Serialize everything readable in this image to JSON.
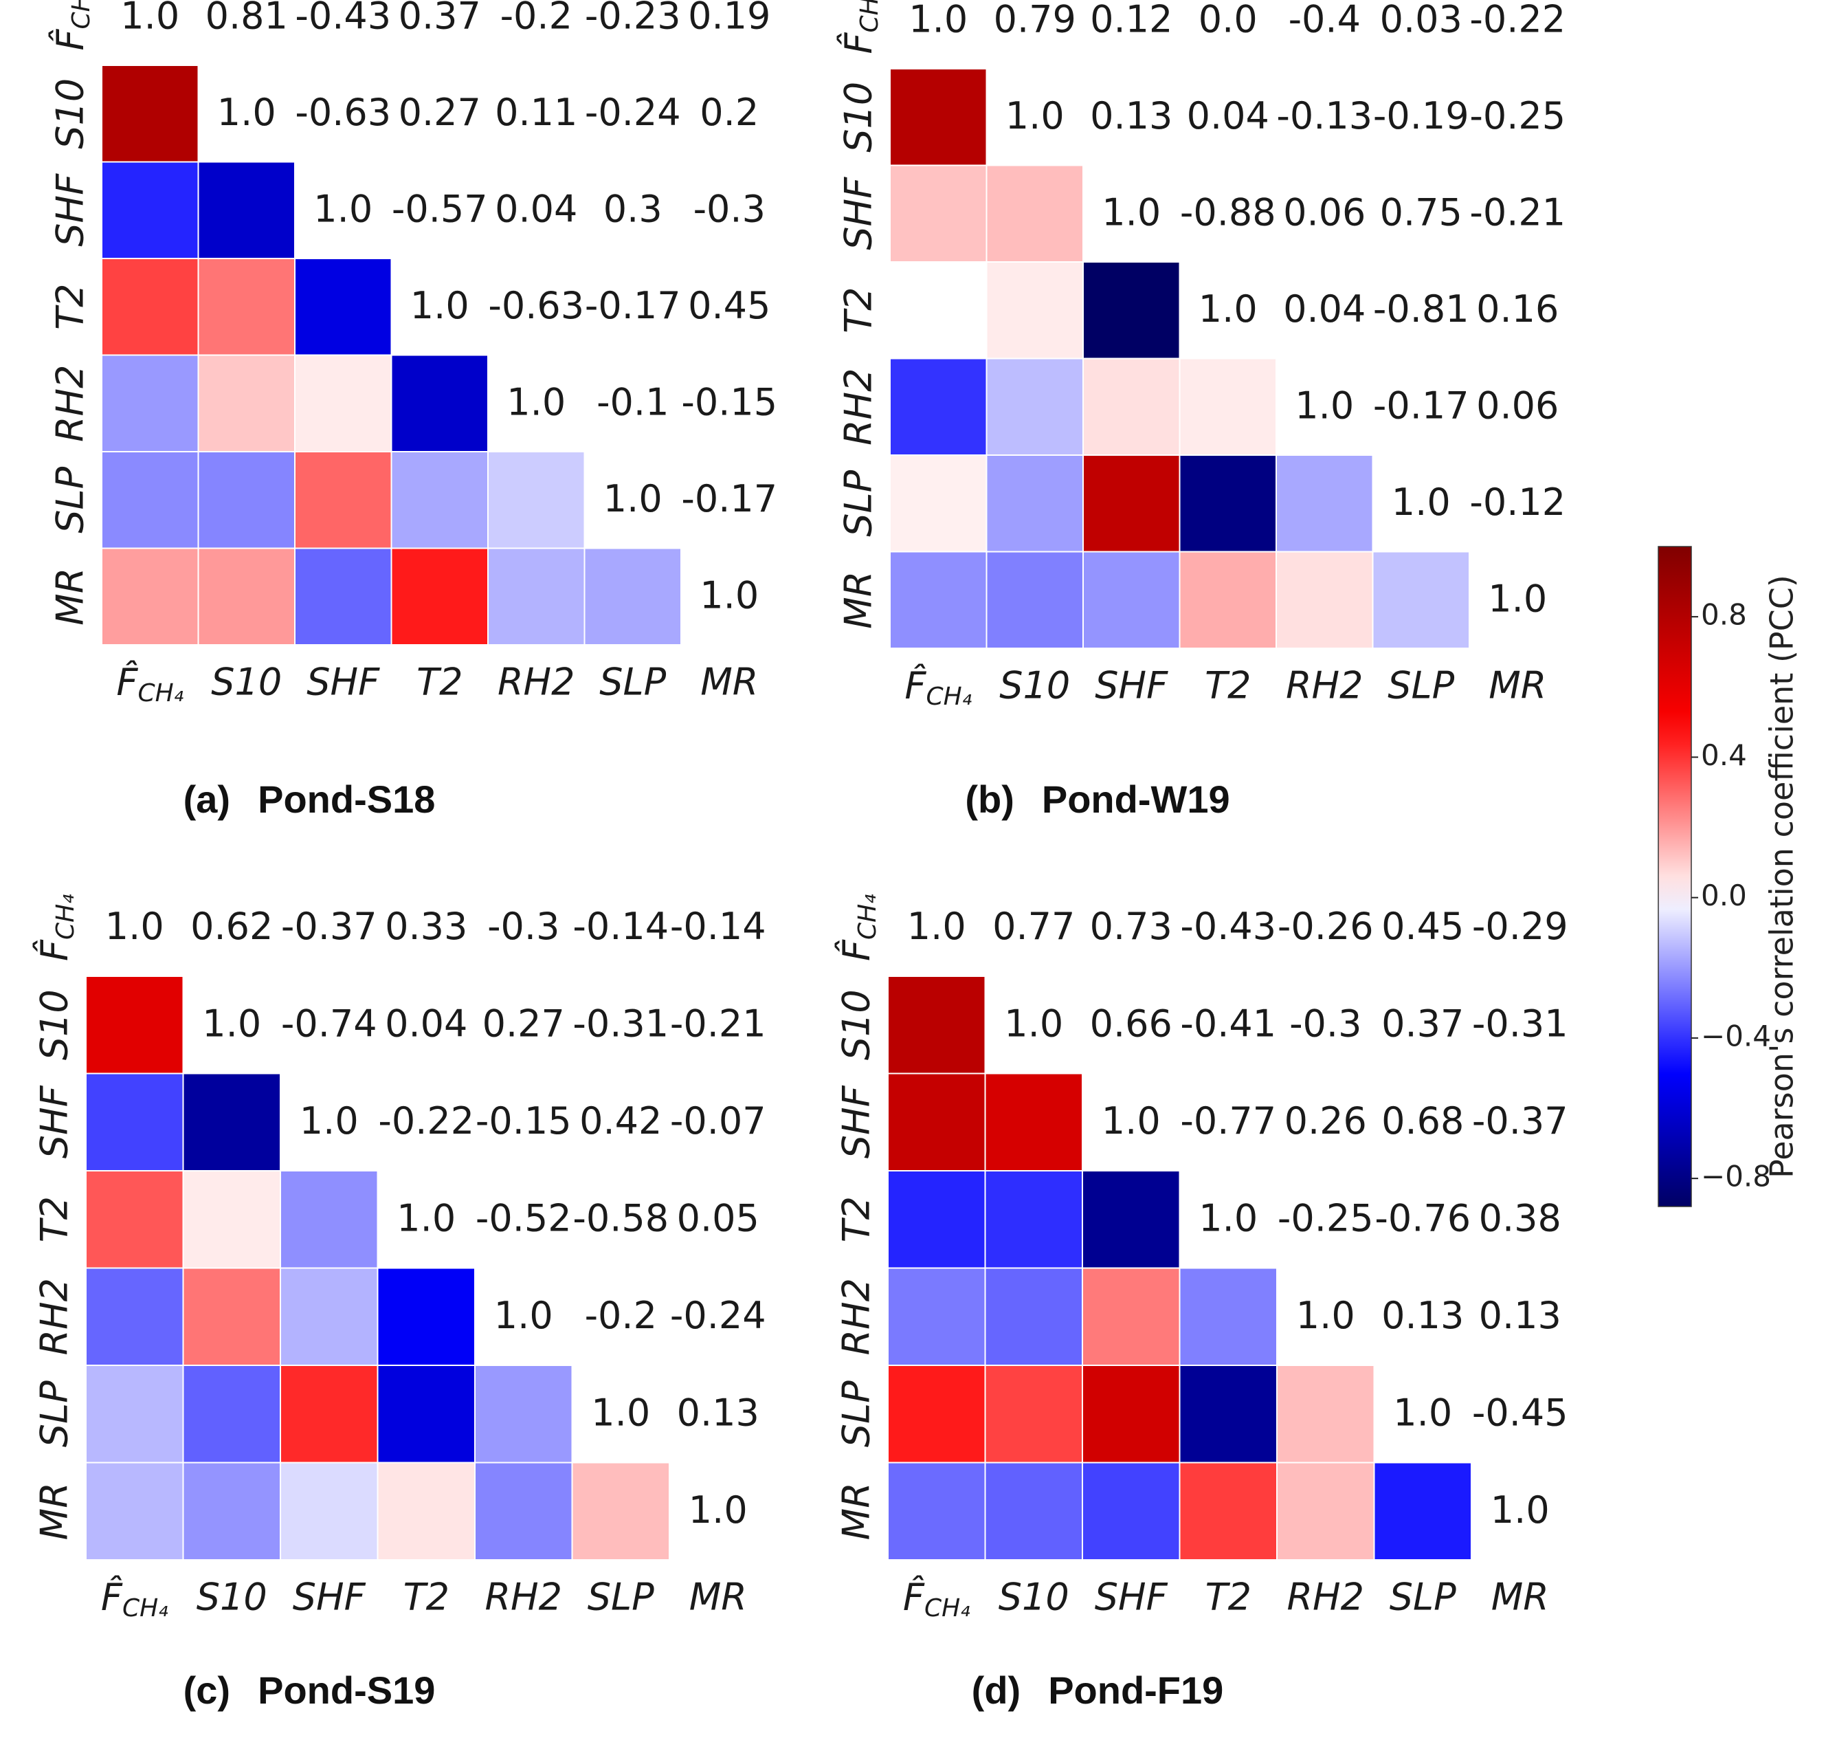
{
  "chart_data": [
    {
      "type": "heatmap",
      "title": "Pond-S18",
      "caption_letter": "(a)",
      "labels": [
        "F_CH4",
        "S10",
        "SHF",
        "T2",
        "RH2",
        "SLP",
        "MR"
      ],
      "label_display": {
        "F_CH4": "F̂CH₄"
      },
      "matrix": [
        [
          1.0,
          0.81,
          -0.43,
          0.37,
          -0.2,
          -0.23,
          0.19
        ],
        [
          0.81,
          1.0,
          -0.63,
          0.27,
          0.11,
          -0.24,
          0.2
        ],
        [
          -0.43,
          -0.63,
          1.0,
          -0.57,
          0.04,
          0.3,
          -0.3
        ],
        [
          0.37,
          0.27,
          -0.57,
          1.0,
          -0.63,
          -0.17,
          0.45
        ],
        [
          -0.2,
          0.11,
          0.04,
          -0.63,
          1.0,
          -0.1,
          -0.15
        ],
        [
          -0.23,
          -0.24,
          0.3,
          -0.17,
          -0.1,
          1.0,
          -0.17
        ],
        [
          0.19,
          0.2,
          -0.3,
          0.45,
          -0.15,
          -0.17,
          1.0
        ]
      ],
      "lower_triangle_colored": true,
      "upper_triangle_as_text": true
    },
    {
      "type": "heatmap",
      "title": "Pond-W19",
      "caption_letter": "(b)",
      "labels": [
        "F_CH4",
        "S10",
        "SHF",
        "T2",
        "RH2",
        "SLP",
        "MR"
      ],
      "label_display": {
        "F_CH4": "F̂CH₄"
      },
      "matrix": [
        [
          1.0,
          0.79,
          0.12,
          0.0,
          -0.4,
          0.03,
          -0.22
        ],
        [
          0.79,
          1.0,
          0.13,
          0.04,
          -0.13,
          -0.19,
          -0.25
        ],
        [
          0.12,
          0.13,
          1.0,
          -0.88,
          0.06,
          0.75,
          -0.21
        ],
        [
          0.0,
          0.04,
          -0.88,
          1.0,
          0.04,
          -0.81,
          0.16
        ],
        [
          -0.4,
          -0.13,
          0.06,
          0.04,
          1.0,
          -0.17,
          0.06
        ],
        [
          0.03,
          -0.19,
          0.75,
          -0.81,
          -0.17,
          1.0,
          -0.12
        ],
        [
          -0.22,
          -0.25,
          -0.21,
          0.16,
          0.06,
          -0.12,
          1.0
        ]
      ],
      "lower_triangle_colored": true,
      "upper_triangle_as_text": true
    },
    {
      "type": "heatmap",
      "title": "Pond-S19",
      "caption_letter": "(c)",
      "labels": [
        "F_CH4",
        "S10",
        "SHF",
        "T2",
        "RH2",
        "SLP",
        "MR"
      ],
      "label_display": {
        "F_CH4": "F̂CH₄"
      },
      "matrix": [
        [
          1.0,
          0.62,
          -0.37,
          0.33,
          -0.3,
          -0.14,
          -0.14
        ],
        [
          0.62,
          1.0,
          -0.74,
          0.04,
          0.27,
          -0.31,
          -0.21
        ],
        [
          -0.37,
          -0.74,
          1.0,
          -0.22,
          -0.15,
          0.42,
          -0.07
        ],
        [
          0.33,
          0.04,
          -0.22,
          1.0,
          -0.52,
          -0.58,
          0.05
        ],
        [
          -0.3,
          0.27,
          -0.15,
          -0.52,
          1.0,
          -0.2,
          -0.24
        ],
        [
          -0.14,
          -0.31,
          0.42,
          -0.58,
          -0.2,
          1.0,
          0.13
        ],
        [
          -0.14,
          -0.21,
          -0.07,
          0.05,
          -0.24,
          0.13,
          1.0
        ]
      ],
      "lower_triangle_colored": true,
      "upper_triangle_as_text": true
    },
    {
      "type": "heatmap",
      "title": "Pond-F19",
      "caption_letter": "(d)",
      "labels": [
        "F_CH4",
        "S10",
        "SHF",
        "T2",
        "RH2",
        "SLP",
        "MR"
      ],
      "label_display": {
        "F_CH4": "F̂CH₄"
      },
      "matrix": [
        [
          1.0,
          0.77,
          0.73,
          -0.43,
          -0.26,
          0.45,
          -0.29
        ],
        [
          0.77,
          1.0,
          0.66,
          -0.41,
          -0.3,
          0.37,
          -0.31
        ],
        [
          0.73,
          0.66,
          1.0,
          -0.77,
          0.26,
          0.68,
          -0.37
        ],
        [
          -0.43,
          -0.41,
          -0.77,
          1.0,
          -0.25,
          -0.76,
          0.38
        ],
        [
          -0.26,
          -0.3,
          0.26,
          -0.25,
          1.0,
          0.13,
          0.13
        ],
        [
          0.45,
          0.37,
          0.68,
          -0.76,
          0.13,
          1.0,
          -0.45
        ],
        [
          -0.29,
          -0.31,
          -0.37,
          0.38,
          0.13,
          -0.45,
          1.0
        ]
      ],
      "lower_triangle_colored": true,
      "upper_triangle_as_text": true
    }
  ],
  "colorbar": {
    "label": "Pearson's correlation coefficient (PCC)",
    "ticks": [
      "0.8",
      "0.4",
      "0.0",
      "−0.4",
      "−0.8"
    ],
    "tick_values": [
      0.8,
      0.4,
      0.0,
      -0.4,
      -0.8
    ],
    "range": [
      -0.88,
      1.0
    ],
    "colormap": "seismic",
    "colors": {
      "low": "#000033",
      "mid_low": "#0000ff",
      "center": "#ffffff",
      "mid_high": "#ff0000",
      "high": "#800000"
    }
  }
}
